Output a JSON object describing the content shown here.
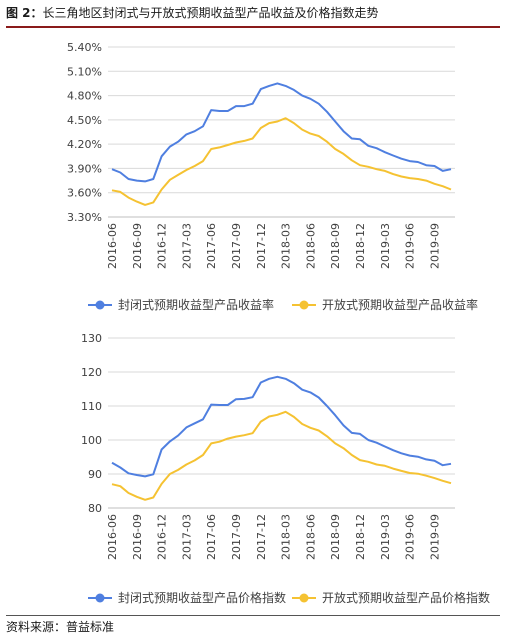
{
  "figure": {
    "title_num": "图 2：",
    "title_text": "长三角地区封闭式与开放式预期收益型产品收益及价格指数走势",
    "source": "资料来源：普益标准"
  },
  "chart_data": [
    {
      "type": "line",
      "ylim": [
        3.3,
        5.4
      ],
      "yticks": [
        "3.30%",
        "3.60%",
        "3.90%",
        "4.20%",
        "4.50%",
        "4.80%",
        "5.10%",
        "5.40%"
      ],
      "ytick_values": [
        3.3,
        3.6,
        3.9,
        4.2,
        4.5,
        4.8,
        5.1,
        5.4
      ],
      "x": [
        "2016-06",
        "2016-07",
        "2016-08",
        "2016-09",
        "2016-10",
        "2016-11",
        "2016-12",
        "2017-01",
        "2017-02",
        "2017-03",
        "2017-04",
        "2017-05",
        "2017-06",
        "2017-07",
        "2017-08",
        "2017-09",
        "2017-10",
        "2017-11",
        "2017-12",
        "2018-01",
        "2018-02",
        "2018-03",
        "2018-04",
        "2018-05",
        "2018-06",
        "2018-07",
        "2018-08",
        "2018-09",
        "2018-10",
        "2018-11",
        "2018-12",
        "2019-01",
        "2019-02",
        "2019-03",
        "2019-04",
        "2019-05",
        "2019-06",
        "2019-07",
        "2019-08",
        "2019-09",
        "2019-10",
        "2019-11"
      ],
      "xtick_labels": [
        "2016-06",
        "2016-09",
        "2016-12",
        "2017-03",
        "2017-06",
        "2017-09",
        "2017-12",
        "2018-03",
        "2018-06",
        "2018-09",
        "2018-12",
        "2019-03",
        "2019-06",
        "2019-09"
      ],
      "grid": true,
      "legend_position": "bottom",
      "series": [
        {
          "name": "封闭式预期收益型产品收益率",
          "color": "#4f7fe0",
          "values": [
            3.89,
            3.85,
            3.77,
            3.75,
            3.74,
            3.77,
            4.05,
            4.17,
            4.23,
            4.32,
            4.36,
            4.42,
            4.62,
            4.61,
            4.61,
            4.67,
            4.67,
            4.7,
            4.88,
            4.92,
            4.95,
            4.92,
            4.87,
            4.8,
            4.76,
            4.7,
            4.6,
            4.48,
            4.36,
            4.27,
            4.26,
            4.18,
            4.15,
            4.1,
            4.06,
            4.02,
            3.99,
            3.98,
            3.94,
            3.93,
            3.87,
            3.89
          ]
        },
        {
          "name": "开放式预期收益型产品收益率",
          "color": "#f5c232",
          "values": [
            3.63,
            3.61,
            3.54,
            3.49,
            3.45,
            3.48,
            3.64,
            3.76,
            3.82,
            3.88,
            3.93,
            3.99,
            4.14,
            4.16,
            4.19,
            4.22,
            4.24,
            4.27,
            4.4,
            4.46,
            4.48,
            4.52,
            4.46,
            4.38,
            4.33,
            4.3,
            4.23,
            4.14,
            4.08,
            4.0,
            3.94,
            3.92,
            3.89,
            3.87,
            3.83,
            3.8,
            3.78,
            3.77,
            3.75,
            3.71,
            3.68,
            3.64
          ]
        }
      ]
    },
    {
      "type": "line",
      "ylim": [
        80,
        130
      ],
      "yticks": [
        "80",
        "90",
        "100",
        "110",
        "120",
        "130"
      ],
      "ytick_values": [
        80,
        90,
        100,
        110,
        120,
        130
      ],
      "x": [
        "2016-06",
        "2016-07",
        "2016-08",
        "2016-09",
        "2016-10",
        "2016-11",
        "2016-12",
        "2017-01",
        "2017-02",
        "2017-03",
        "2017-04",
        "2017-05",
        "2017-06",
        "2017-07",
        "2017-08",
        "2017-09",
        "2017-10",
        "2017-11",
        "2017-12",
        "2018-01",
        "2018-02",
        "2018-03",
        "2018-04",
        "2018-05",
        "2018-06",
        "2018-07",
        "2018-08",
        "2018-09",
        "2018-10",
        "2018-11",
        "2018-12",
        "2019-01",
        "2019-02",
        "2019-03",
        "2019-04",
        "2019-05",
        "2019-06",
        "2019-07",
        "2019-08",
        "2019-09",
        "2019-10",
        "2019-11"
      ],
      "xtick_labels": [
        "2016-06",
        "2016-09",
        "2016-12",
        "2017-03",
        "2017-06",
        "2017-09",
        "2017-12",
        "2018-03",
        "2018-06",
        "2018-09",
        "2018-12",
        "2019-03",
        "2019-06",
        "2019-09"
      ],
      "grid": true,
      "legend_position": "bottom",
      "series": [
        {
          "name": "封闭式预期收益型产品价格指数",
          "color": "#4f7fe0",
          "values": [
            93.3,
            91.9,
            90.2,
            89.7,
            89.3,
            89.9,
            97.2,
            99.6,
            101.3,
            103.7,
            104.9,
            106.1,
            110.4,
            110.3,
            110.3,
            112.0,
            112.1,
            112.6,
            116.9,
            118.0,
            118.6,
            118.0,
            116.7,
            114.8,
            114.0,
            112.5,
            110.0,
            107.3,
            104.3,
            102.1,
            101.8,
            100.0,
            99.2,
            98.1,
            97.0,
            96.1,
            95.4,
            95.1,
            94.3,
            93.9,
            92.6,
            93.0
          ]
        },
        {
          "name": "开放式预期收益型产品价格指数",
          "color": "#f5c232",
          "values": [
            87.0,
            86.4,
            84.4,
            83.3,
            82.4,
            83.1,
            87.1,
            90.0,
            91.2,
            92.8,
            94.0,
            95.6,
            99.0,
            99.5,
            100.4,
            101.0,
            101.4,
            102.0,
            105.4,
            106.9,
            107.4,
            108.3,
            106.8,
            104.7,
            103.6,
            102.8,
            101.1,
            99.0,
            97.6,
            95.6,
            94.1,
            93.6,
            92.8,
            92.4,
            91.6,
            90.9,
            90.3,
            90.1,
            89.5,
            88.8,
            88.0,
            87.3
          ]
        }
      ]
    }
  ]
}
